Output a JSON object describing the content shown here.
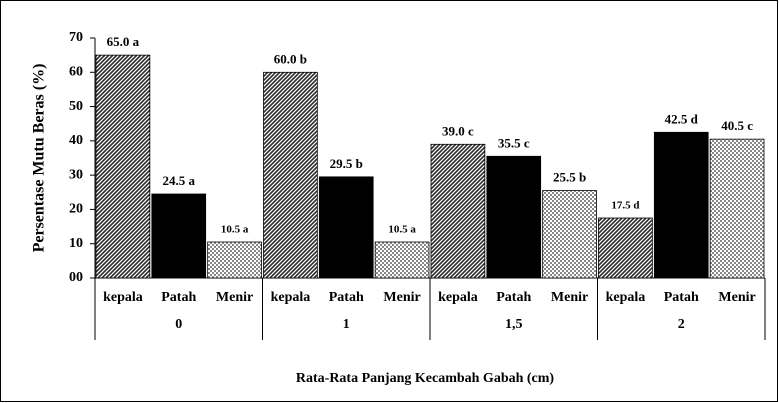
{
  "chart_data": {
    "type": "bar",
    "x_label": "Rata-Rata Panjang Kecambah Gabah (cm)",
    "y_label": "Persentase Mutu Beras (%)",
    "categories": [
      "0",
      "1",
      "1,5",
      "2"
    ],
    "series": [
      {
        "name": "kepala",
        "color": "#2a2a2a",
        "pattern": "diagonal",
        "values": [
          65,
          60,
          39,
          17.5
        ],
        "value_labels": [
          "65.0 a",
          "60.0 b",
          "39.0 c",
          "17.5 d"
        ]
      },
      {
        "name": "Patah",
        "color": "#000000",
        "pattern": "solid",
        "values": [
          24.5,
          29.5,
          35.5,
          42.5
        ],
        "value_labels": [
          "24.5 a",
          "29.5 b",
          "35.5 c",
          "42.5 d"
        ]
      },
      {
        "name": "Menir",
        "color": "#888888",
        "pattern": "dots",
        "values": [
          10.5,
          10.5,
          25.5,
          40.5
        ],
        "value_labels": [
          "10.5 a",
          "10.5 a",
          "25.5 b",
          "40.5 c"
        ]
      }
    ],
    "ylim": [
      0,
      70
    ],
    "yticks": [
      {
        "value": 0,
        "label": "00"
      },
      10,
      20,
      30,
      40,
      50,
      60,
      70
    ]
  }
}
